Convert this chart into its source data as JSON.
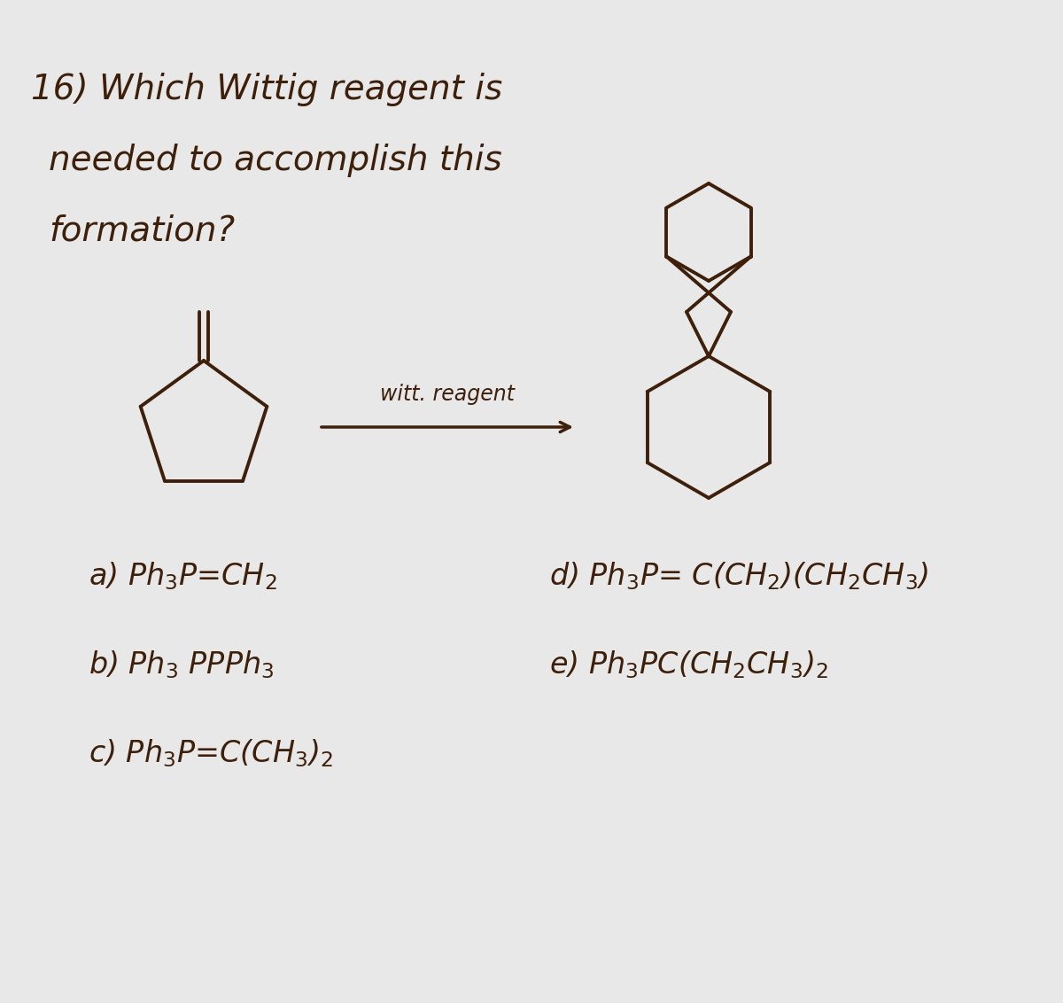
{
  "bg_color": "#e8e8e8",
  "text_color": "#3d1f0a",
  "title_line1": "16) Which Wittig reagent is",
  "title_line2": "needed to accomplish this",
  "title_line3": "formation?",
  "arrow_label": "witt. reagent",
  "option_a": "a) Ph$_3$P=CH$_2$",
  "option_b": "b) Ph$_3$ PPPh$_3$",
  "option_c": "c) Ph$_3$P=C(CH$_3$)$_2$",
  "option_d": "d) Ph$_3$P= C(CH$_2$)(CH$_2$CH$_3$)",
  "option_e": "e) Ph$_3$PC(CH$_2$CH$_3$)$_2$",
  "font_size_title": 28,
  "font_size_options": 24,
  "font_family": "DejaVu Sans"
}
